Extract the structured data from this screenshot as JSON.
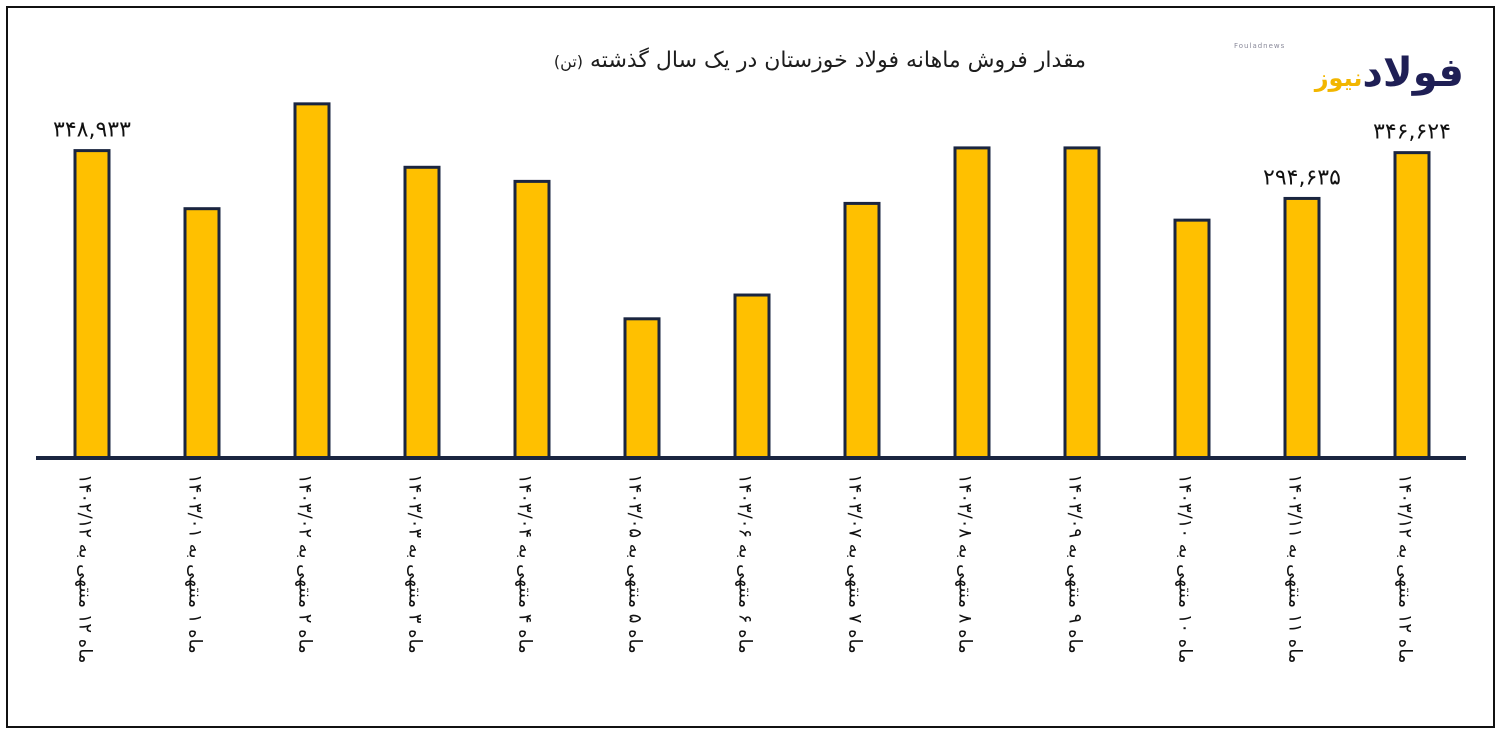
{
  "title": "مقدار فروش ماهانه فولاد خوزستان در یک سال گذشته",
  "title_unit": "(تن)",
  "logo": {
    "small_text": "Fouladnews",
    "word_main": "فولاد",
    "word_accent": "نیوز"
  },
  "colors": {
    "bar_fill": "#FFC000",
    "bar_stroke": "#1A2540",
    "axis": "#1A2540",
    "logo_dark": "#1F1F55",
    "logo_accent": "#F2B600"
  },
  "chart_data": {
    "type": "bar",
    "title": "مقدار فروش ماهانه فولاد خوزستان در یک سال گذشته (تن)",
    "categories": [
      "ماه ۱۲ منتهی به ۱۴۰۲/۱۲",
      "ماه ۱ منتهی به ۱۴۰۳/۰۱",
      "ماه ۲ منتهی به ۱۴۰۳/۰۲",
      "ماه ۳ منتهی به ۱۴۰۳/۰۳",
      "ماه ۴ منتهی به ۱۴۰۳/۰۴",
      "ماه ۵ منتهی به ۱۴۰۳/۰۵",
      "ماه ۶ منتهی به ۱۴۰۳/۰۶",
      "ماه ۷ منتهی به ۱۴۰۳/۰۷",
      "ماه ۸ منتهی به ۱۴۰۳/۰۸",
      "ماه ۹ منتهی به ۱۴۰۳/۰۹",
      "ماه ۱۰ منتهی به ۱۴۰۳/۱۰",
      "ماه ۱۱ منتهی به ۱۴۰۳/۱۱",
      "ماه ۱۲ منتهی به ۱۴۰۳/۱۲"
    ],
    "values": [
      348933,
      283000,
      402000,
      330000,
      314000,
      158000,
      185000,
      289000,
      352000,
      352000,
      270000,
      294635,
      346624
    ],
    "data_labels": [
      "۳۴۸,۹۳۳",
      "",
      "",
      "",
      "",
      "",
      "",
      "",
      "",
      "",
      "",
      "۲۹۴,۶۳۵",
      "۳۴۶,۶۲۴"
    ],
    "ylim": [
      0,
      420000
    ],
    "grid": false,
    "legend": "none",
    "xlabel": "",
    "ylabel": ""
  }
}
